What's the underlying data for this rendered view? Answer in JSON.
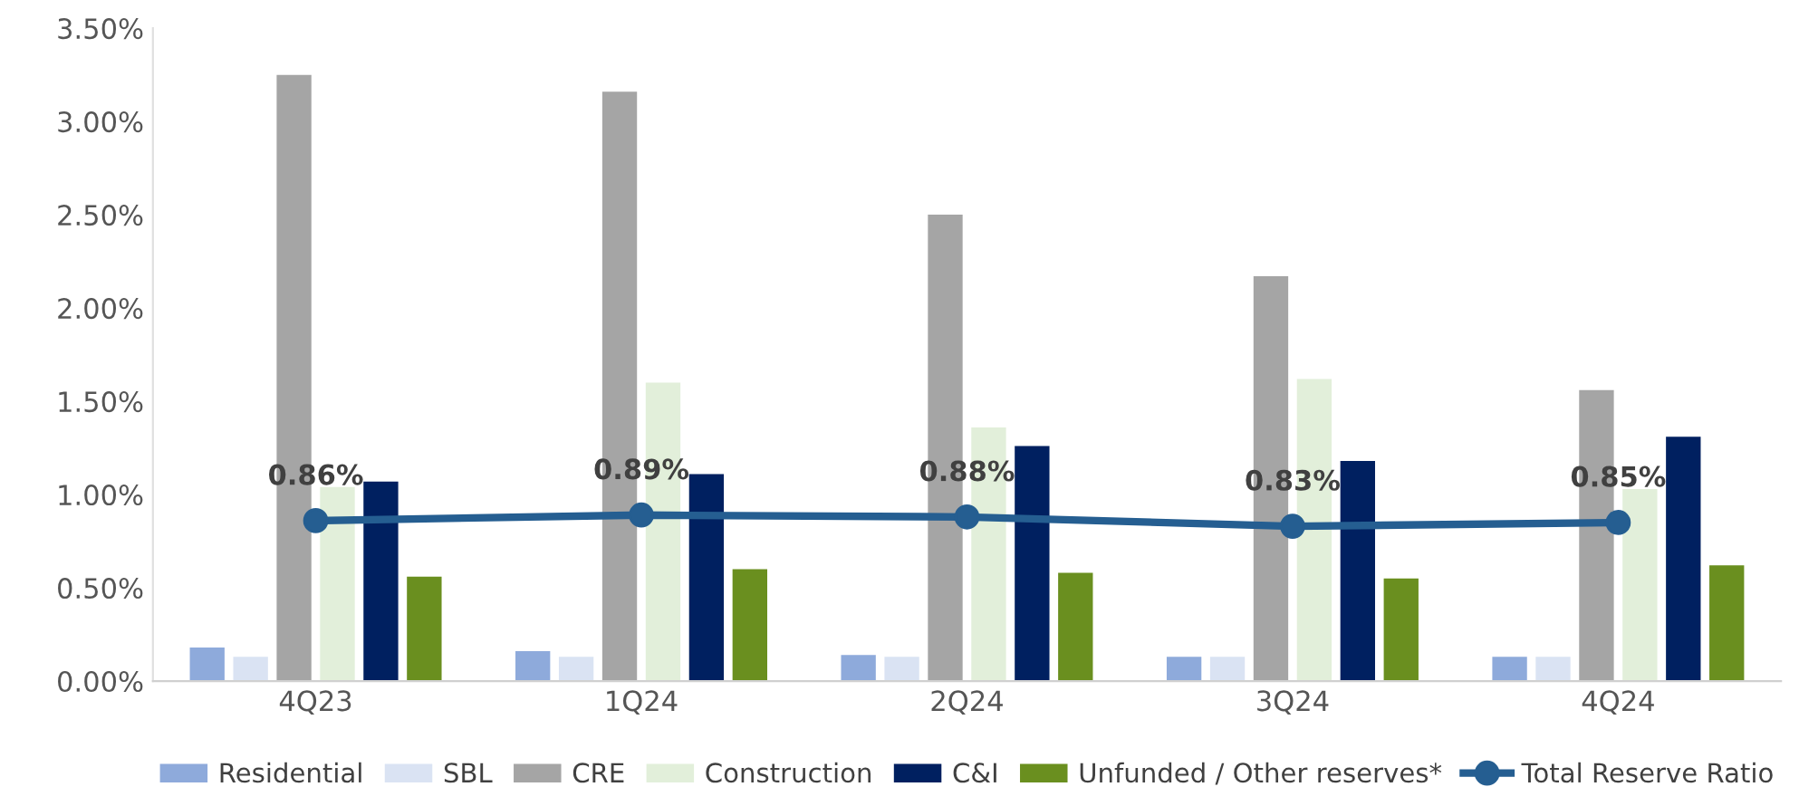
{
  "chart_data": {
    "type": "bar",
    "categories": [
      "4Q23",
      "1Q24",
      "2Q24",
      "3Q24",
      "4Q24"
    ],
    "series": [
      {
        "name": "Residential",
        "color": "#8eaadb",
        "values": [
          0.18,
          0.16,
          0.14,
          0.13,
          0.13
        ]
      },
      {
        "name": "SBL",
        "color": "#dae3f3",
        "values": [
          0.13,
          0.13,
          0.13,
          0.13,
          0.13
        ]
      },
      {
        "name": "CRE",
        "color": "#a5a5a5",
        "values": [
          3.25,
          3.16,
          2.5,
          2.17,
          1.56
        ]
      },
      {
        "name": "Construction",
        "color": "#e2efda",
        "values": [
          1.04,
          1.6,
          1.36,
          1.62,
          1.03
        ]
      },
      {
        "name": "C&I",
        "color": "#002060",
        "values": [
          1.07,
          1.11,
          1.26,
          1.18,
          1.31
        ]
      },
      {
        "name": "Unfunded / Other reserves*",
        "color": "#6a8f1f",
        "values": [
          0.56,
          0.6,
          0.58,
          0.55,
          0.62
        ]
      },
      {
        "name": "Total Reserve Ratio",
        "type": "line",
        "color": "#255e91",
        "values": [
          0.86,
          0.89,
          0.88,
          0.83,
          0.85
        ],
        "value_labels": [
          "0.86%",
          "0.89%",
          "0.88%",
          "0.83%",
          "0.85%"
        ]
      }
    ],
    "ylim": [
      0,
      3.5
    ],
    "yticks": [
      {
        "value": 0,
        "label": "0.00%"
      },
      {
        "value": 0.5,
        "label": "0.50%"
      },
      {
        "value": 1,
        "label": "1.00%"
      },
      {
        "value": 1.5,
        "label": "1.50%"
      },
      {
        "value": 2,
        "label": "2.00%"
      },
      {
        "value": 2.5,
        "label": "2.50%"
      },
      {
        "value": 3,
        "label": "3.00%"
      },
      {
        "value": 3.5,
        "label": "3.50%"
      }
    ],
    "grid": false,
    "legend": "bottom",
    "marker": "circle"
  }
}
